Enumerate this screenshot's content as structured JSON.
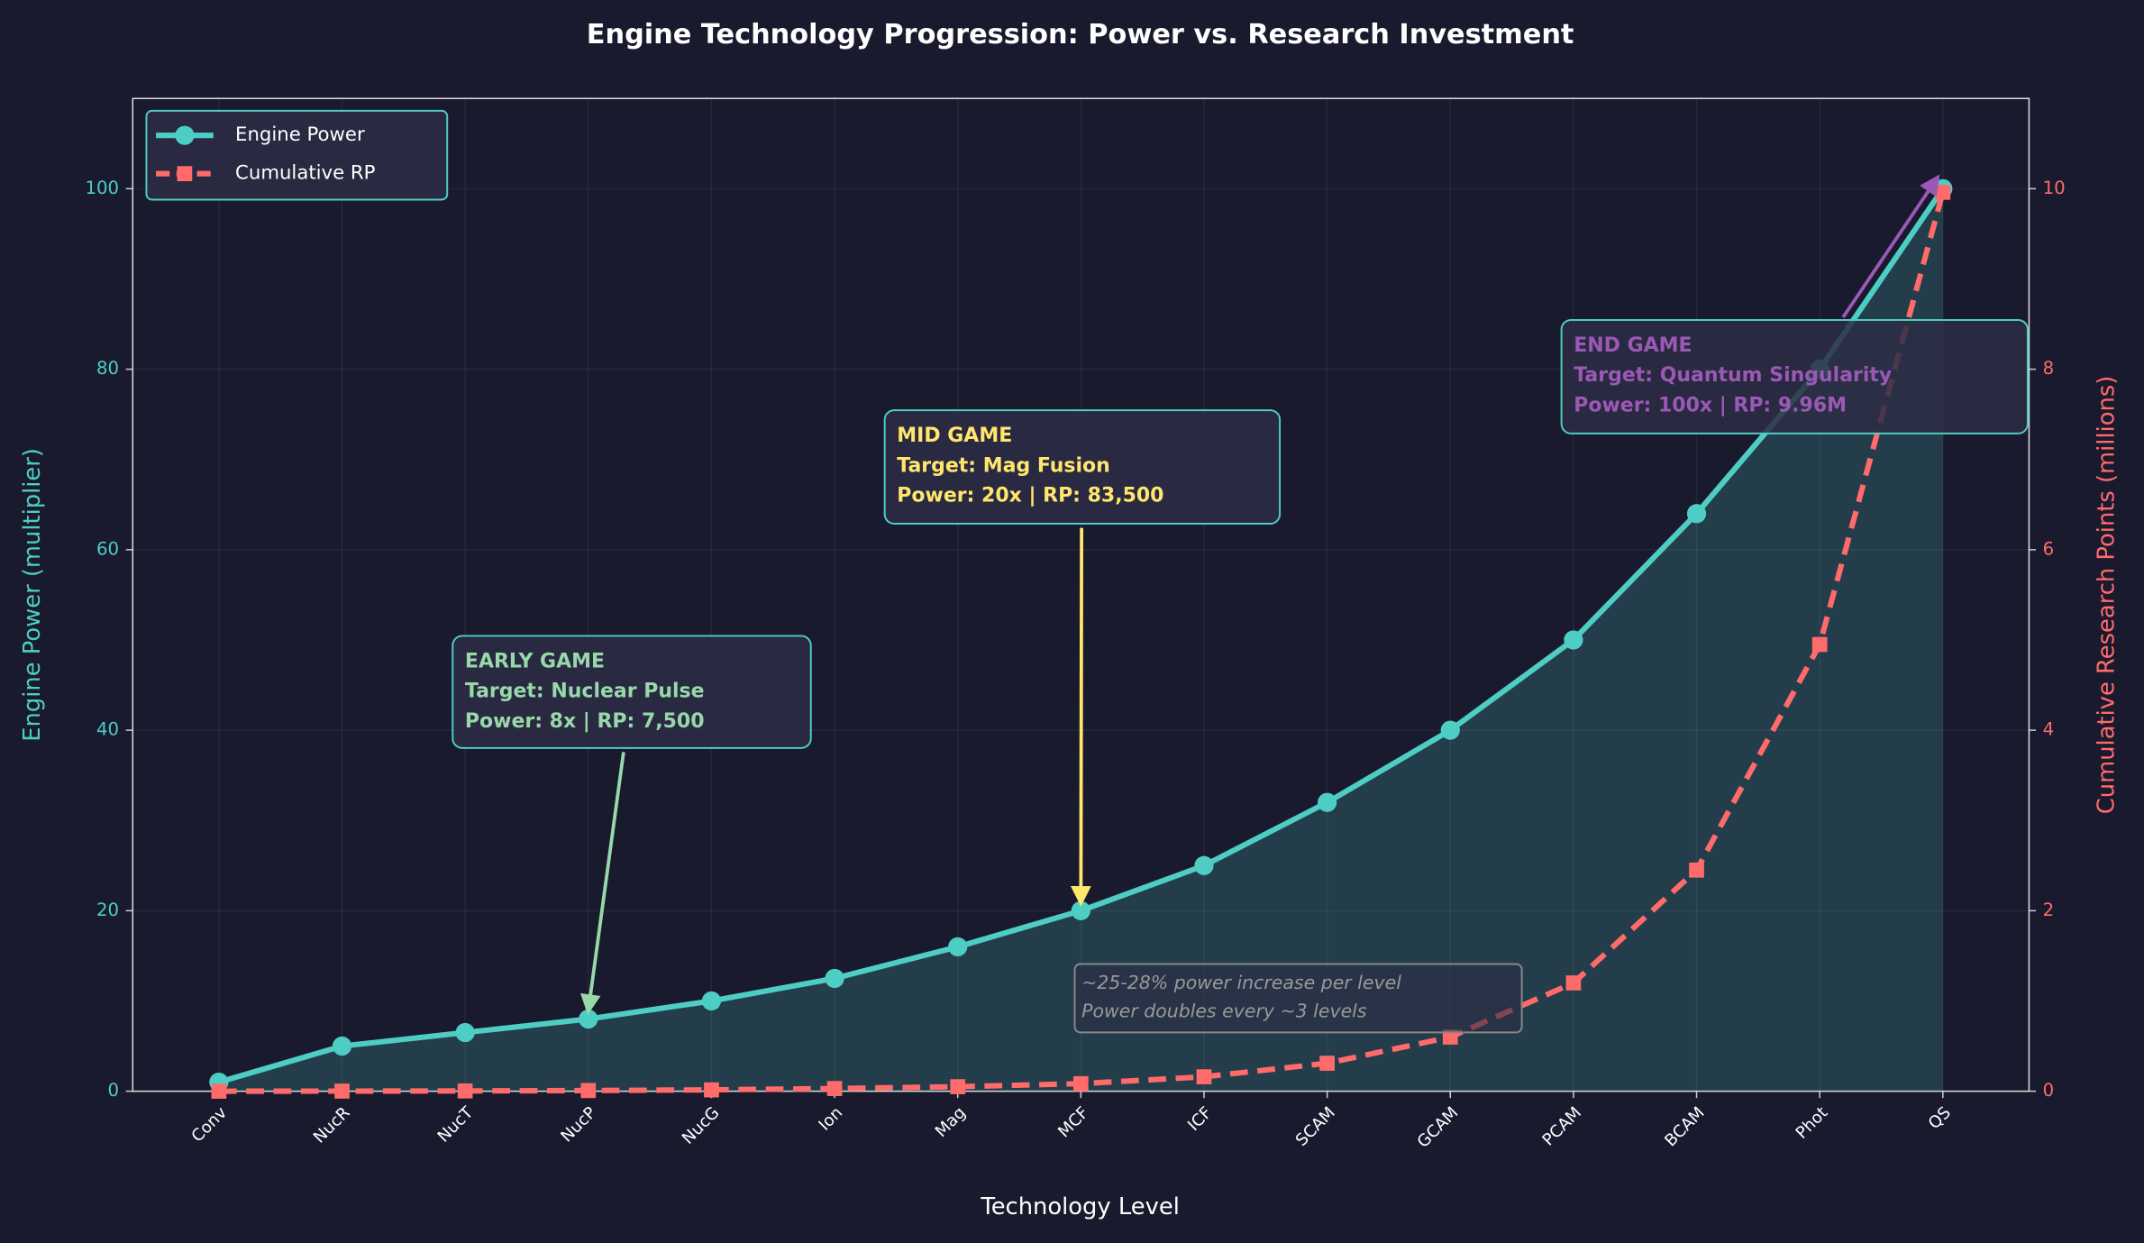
{
  "chart_data": {
    "type": "line",
    "title": "Engine Technology Progression: Power vs. Research Investment",
    "xlabel": "Technology Level",
    "ylabel": "Engine Power (multiplier)",
    "y2label": "Cumulative Research Points (millions)",
    "categories": [
      "Conv",
      "NucR",
      "NucT",
      "NucP",
      "NucG",
      "Ion",
      "Mag",
      "MCF",
      "ICF",
      "SCAM",
      "GCAM",
      "PCAM",
      "BCAM",
      "Phot",
      "QS"
    ],
    "series": [
      {
        "name": "Engine Power",
        "color": "#4ecdc4",
        "values": [
          1,
          5,
          6.5,
          8,
          10,
          12.5,
          16,
          20,
          25,
          32,
          40,
          50,
          64,
          80,
          100
        ]
      },
      {
        "name": "Cumulative RP",
        "color": "#ff6b6b",
        "axis": "y2",
        "values": [
          0,
          0.001,
          0.003,
          0.0075,
          0.015,
          0.03,
          0.05,
          0.0835,
          0.16,
          0.31,
          0.6,
          1.2,
          2.45,
          4.95,
          9.96
        ]
      }
    ],
    "ylim": [
      0,
      110
    ],
    "yticks": [
      0,
      20,
      40,
      60,
      80,
      100
    ],
    "y2lim": [
      0,
      11
    ],
    "y2ticks": [
      0,
      2,
      4,
      6,
      8,
      10
    ],
    "grid": true,
    "legend": "upper left",
    "annotations": [
      {
        "lines": [
          "EARLY GAME",
          "Target: Nuclear Pulse",
          "Power: 8x | RP: 7,500"
        ],
        "color": "#98d8aa"
      },
      {
        "lines": [
          "MID GAME",
          "Target: Mag Fusion",
          "Power: 20x | RP: 83,500"
        ],
        "color": "#ffe66d"
      },
      {
        "lines": [
          "END GAME",
          "Target: Quantum Singularity",
          "Power: 100x | RP: 9.96M"
        ],
        "color": "#9b59b6"
      }
    ],
    "note": [
      "~25-28% power increase per level",
      "Power doubles every ~3 levels"
    ]
  }
}
